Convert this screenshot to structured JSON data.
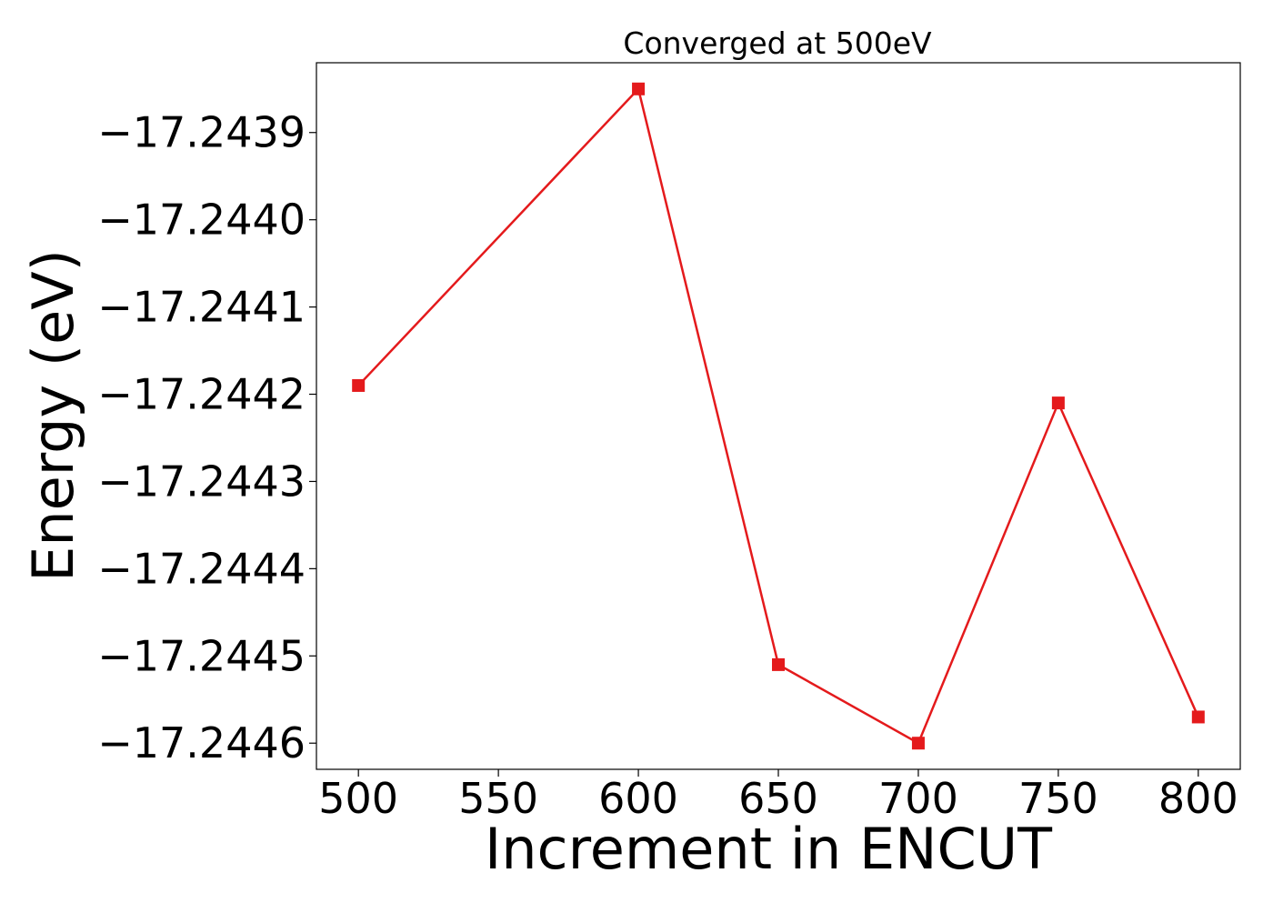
{
  "chart_data": {
    "type": "line",
    "title": "Converged at 500eV",
    "xlabel": "Increment in ENCUT",
    "ylabel": "Energy (eV)",
    "x": [
      500,
      600,
      650,
      700,
      750,
      800
    ],
    "series": [
      {
        "values": [
          -17.24419,
          -17.24385,
          -17.24451,
          -17.2446,
          -17.24421,
          -17.24457
        ],
        "color": "#e41a1c",
        "marker": "square"
      }
    ],
    "xticks": [
      500,
      550,
      600,
      650,
      700,
      750,
      800
    ],
    "xtick_labels": [
      "500",
      "550",
      "600",
      "650",
      "700",
      "750",
      "800"
    ],
    "yticks": [
      -17.2439,
      -17.244,
      -17.2441,
      -17.2442,
      -17.2443,
      -17.2444,
      -17.2445,
      -17.2446
    ],
    "ytick_labels": [
      "−17.2439",
      "−17.2440",
      "−17.2441",
      "−17.2442",
      "−17.2443",
      "−17.2444",
      "−17.2445",
      "−17.2446"
    ],
    "xlim": [
      485,
      815
    ],
    "ylim": [
      -17.24463,
      -17.24382
    ],
    "grid": false,
    "legend": "none"
  }
}
